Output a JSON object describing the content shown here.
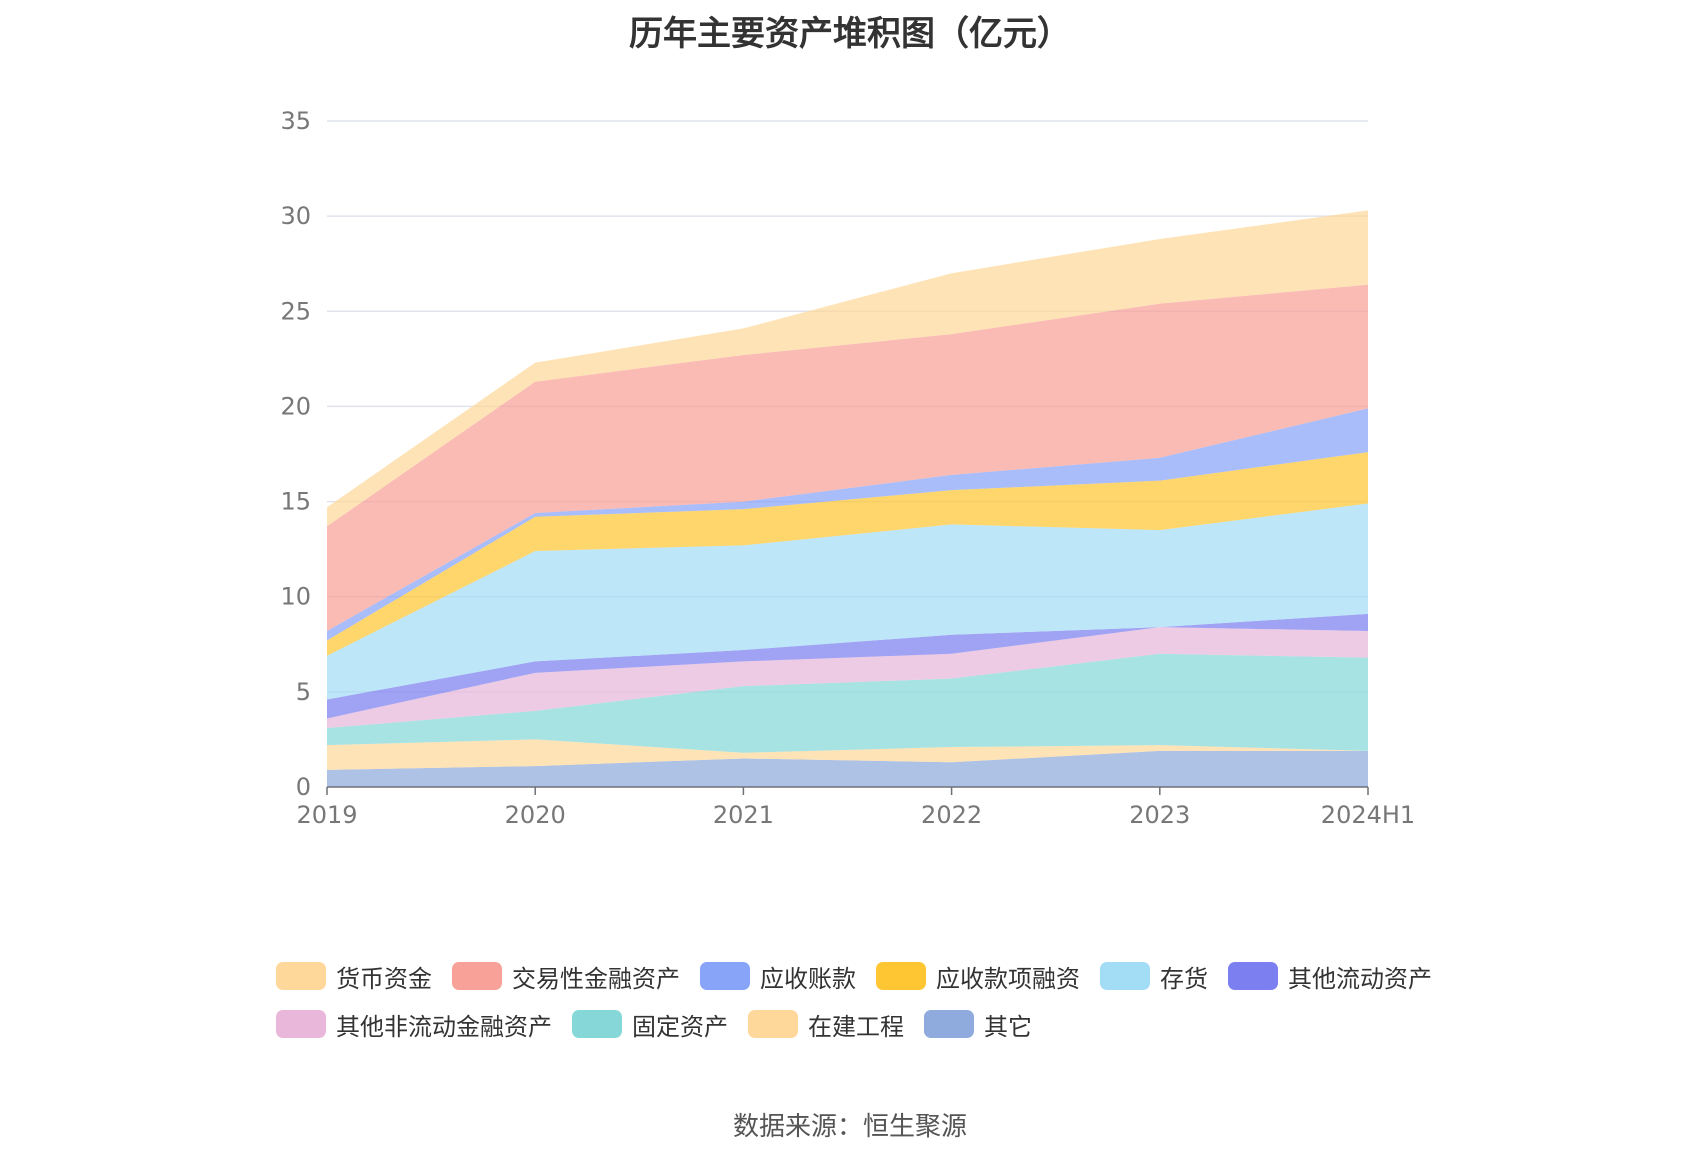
{
  "chart_data": {
    "type": "area",
    "title": "历年主要资产堆积图（亿元）",
    "source": "数据来源：恒生聚源",
    "categories": [
      "2019",
      "2020",
      "2021",
      "2022",
      "2023",
      "2024H1"
    ],
    "ylim": [
      0,
      35
    ],
    "yticks": [
      "0",
      "5",
      "10",
      "15",
      "20",
      "25",
      "30",
      "35"
    ],
    "grid": true,
    "stacked": true,
    "legend_position": "bottom",
    "series": [
      {
        "name": "其它",
        "color": "#8FAADC",
        "values": [
          0.9,
          1.1,
          1.5,
          1.3,
          1.9,
          1.9
        ]
      },
      {
        "name": "在建工程",
        "color": "#FDD89A",
        "values": [
          1.3,
          1.4,
          0.3,
          0.8,
          0.3,
          0.0
        ]
      },
      {
        "name": "固定资产",
        "color": "#86D8D8",
        "values": [
          0.9,
          1.5,
          3.5,
          3.6,
          4.8,
          4.9
        ]
      },
      {
        "name": "其他非流动金融资产",
        "color": "#E8B7DA",
        "values": [
          0.5,
          2.0,
          1.3,
          1.3,
          1.4,
          1.4
        ]
      },
      {
        "name": "其他流动资产",
        "color": "#7B7FF0",
        "values": [
          1.0,
          0.6,
          0.6,
          1.0,
          0.0,
          0.9
        ]
      },
      {
        "name": "存货",
        "color": "#A3DDF5",
        "values": [
          2.3,
          5.8,
          5.5,
          5.8,
          5.1,
          5.8
        ]
      },
      {
        "name": "应收款项融资",
        "color": "#FEC633",
        "values": [
          0.8,
          1.8,
          1.9,
          1.8,
          2.6,
          2.7
        ]
      },
      {
        "name": "应收账款",
        "color": "#87A4F8",
        "values": [
          0.5,
          0.2,
          0.4,
          0.8,
          1.2,
          2.3
        ]
      },
      {
        "name": "交易性金融资产",
        "color": "#F8A198",
        "values": [
          5.5,
          6.9,
          7.7,
          7.4,
          8.1,
          6.5
        ]
      },
      {
        "name": "货币资金",
        "color": "#FDD89A",
        "values": [
          1.0,
          1.0,
          1.4,
          3.2,
          3.4,
          3.9
        ]
      }
    ],
    "legend_order": [
      "货币资金",
      "交易性金融资产",
      "应收账款",
      "应收款项融资",
      "存货",
      "其他流动资产",
      "其他非流动金融资产",
      "固定资产",
      "在建工程",
      "其它"
    ]
  }
}
